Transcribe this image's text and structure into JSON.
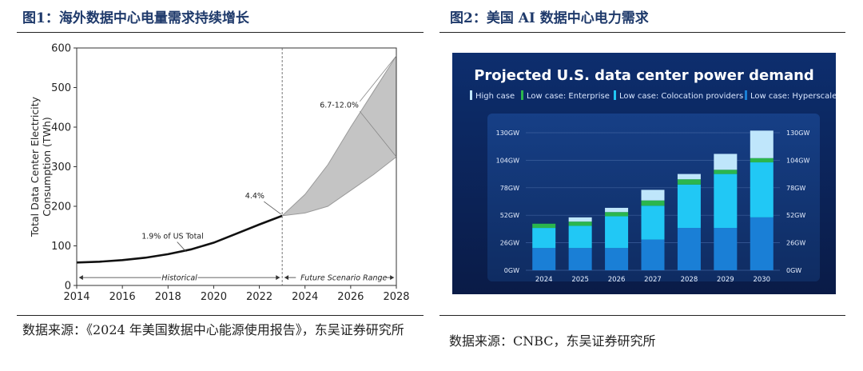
{
  "figure1": {
    "title": "图1：海外数据中心电量需求持续增长",
    "source": "数据来源：《2024 年美国数据中心能源使用报告》，东吴证券研究所",
    "chart_data": {
      "type": "area",
      "ylabel": "Total Data Center Electricity Consumption (TWh)",
      "xlabel": "",
      "xlim": [
        2014,
        2028
      ],
      "ylim": [
        0,
        600
      ],
      "xticks": [
        "2014",
        "2016",
        "2018",
        "2020",
        "2022",
        "2024",
        "2026",
        "2028"
      ],
      "yticks": [
        "0",
        "100",
        "200",
        "300",
        "400",
        "500",
        "600"
      ],
      "grid": false,
      "series": [
        {
          "kind": "line",
          "x": [
            2014,
            2015,
            2016,
            2017,
            2018,
            2019,
            2020,
            2021,
            2022,
            2023
          ],
          "values": [
            58,
            60,
            64,
            70,
            79,
            91,
            108,
            131,
            154,
            176
          ]
        },
        {
          "kind": "band",
          "x": [
            2023,
            2024,
            2025,
            2026,
            2027,
            2028
          ],
          "low": [
            176,
            183,
            200,
            240,
            280,
            325
          ],
          "high": [
            176,
            230,
            305,
            400,
            490,
            580
          ]
        }
      ],
      "annotations": [
        {
          "text": "1.9% of US Total",
          "x": 2018.2,
          "y": 118
        },
        {
          "text": "4.4%",
          "x": 2021.8,
          "y": 220
        },
        {
          "text": "6.7-12.0%",
          "x": 2025.5,
          "y": 450
        },
        {
          "text": "Historical",
          "x": 2018.5,
          "y": 20
        },
        {
          "text": "Future Scenario Range",
          "x": 2025.7,
          "y": 20
        }
      ]
    }
  },
  "figure2": {
    "title": "图2：美国 AI 数据中心电力需求",
    "source": "数据来源：CNBC，东吴证券研究所",
    "chart_data": {
      "type": "bar",
      "title": "Projected U.S. data center power demand",
      "categories": [
        "2024",
        "2025",
        "2026",
        "2027",
        "2028",
        "2029",
        "2030"
      ],
      "ylim": [
        0,
        130
      ],
      "yticks": [
        "0GW",
        "26GW",
        "52GW",
        "78GW",
        "104GW",
        "130GW"
      ],
      "legend_position": "top",
      "series": [
        {
          "name": "Low case: Hyperscale",
          "color": "#1a7fd6",
          "values": [
            21,
            21,
            21,
            29,
            40,
            40,
            50
          ]
        },
        {
          "name": "Low case: Colocation providers",
          "color": "#21c8f5",
          "values": [
            19,
            21,
            30,
            32,
            41,
            51,
            52
          ]
        },
        {
          "name": "Low case: Enterprise",
          "color": "#2bb64d",
          "values": [
            4,
            4,
            4,
            5,
            5,
            4,
            4
          ]
        },
        {
          "name": "High case",
          "color": "#bfe6fb",
          "values": [
            0,
            4,
            4,
            10,
            5,
            15,
            26
          ]
        }
      ]
    }
  },
  "colors": {
    "title_blue": "#1f3a6b",
    "chart_bg_top": "#0c2a68",
    "chart_bg_bottom": "#0a1d4f"
  }
}
